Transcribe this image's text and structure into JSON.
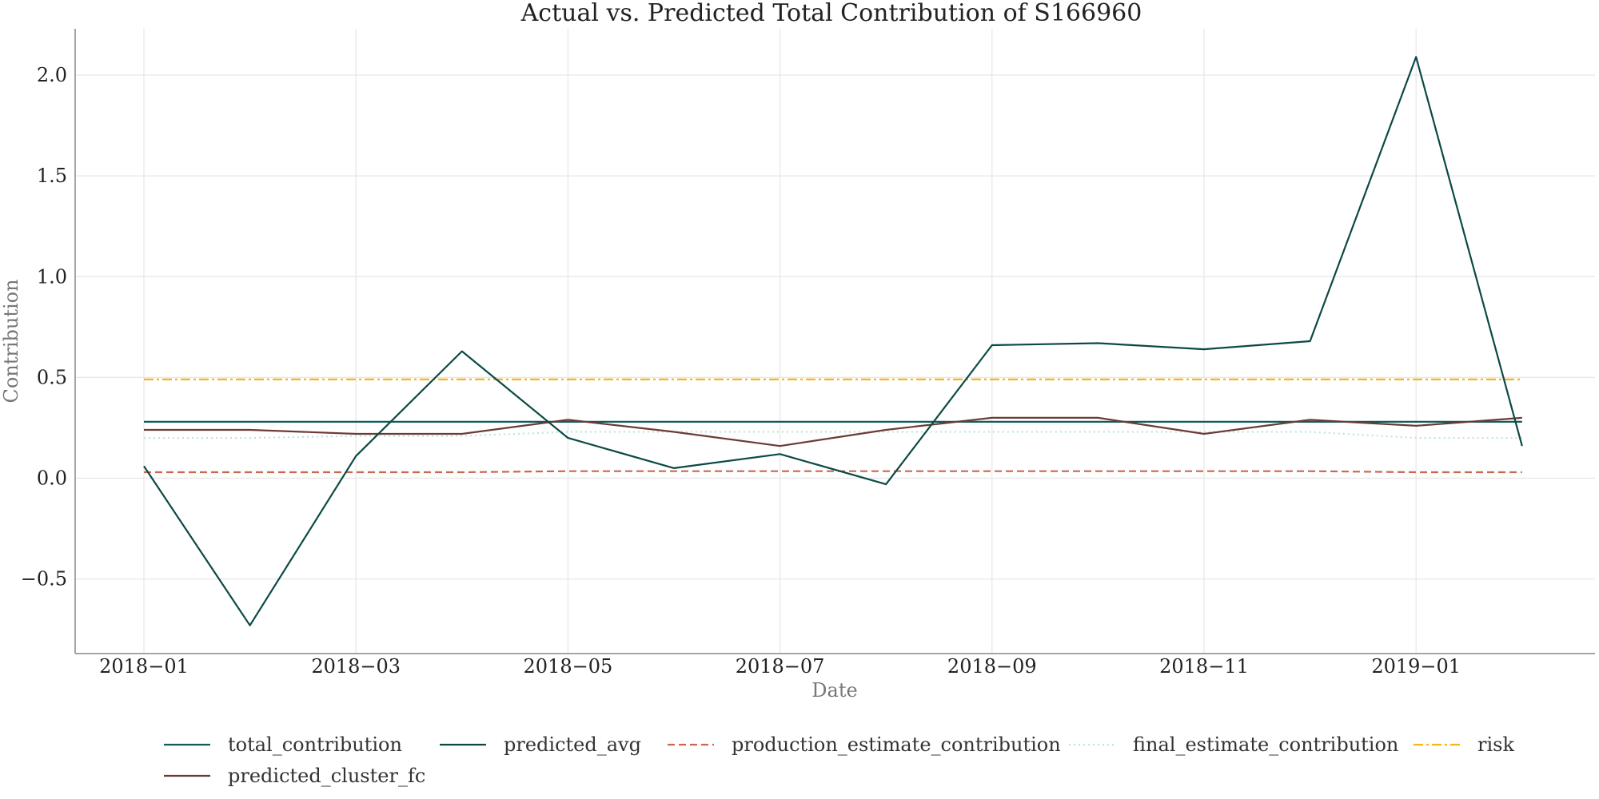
{
  "chart_data": {
    "type": "line",
    "title": "Actual vs. Predicted Total Contribution of S166960",
    "xlabel": "Date",
    "ylabel": "Contribution",
    "x": [
      "2018-01",
      "2018-02",
      "2018-03",
      "2018-04",
      "2018-05",
      "2018-06",
      "2018-07",
      "2018-08",
      "2018-09",
      "2018-10",
      "2018-11",
      "2018-12",
      "2019-01",
      "2019-02"
    ],
    "x_ticks": [
      "2018-01",
      "2018-03",
      "2018-05",
      "2018-07",
      "2018-09",
      "2018-11",
      "2019-01"
    ],
    "x_tick_labels": [
      "2018−01",
      "2018−03",
      "2018−05",
      "2018−07",
      "2018−09",
      "2018−11",
      "2019−01"
    ],
    "y_ticks": [
      -0.5,
      0.0,
      0.5,
      1.0,
      1.5,
      2.0
    ],
    "y_tick_labels": [
      "−0.5",
      "0.0",
      "0.5",
      "1.0",
      "1.5",
      "2.0"
    ],
    "ylim": [
      -0.87,
      2.23
    ],
    "grid": true,
    "legend_position": "bottom",
    "series": [
      {
        "name": "total_contribution",
        "color": "#0e5c5c",
        "dash": "solid",
        "values": [
          0.28,
          0.28,
          0.28,
          0.28,
          0.28,
          0.28,
          0.28,
          0.28,
          0.28,
          0.28,
          0.28,
          0.28,
          0.28,
          0.28
        ]
      },
      {
        "name": "predicted_avg",
        "color": "#0b4a44",
        "dash": "solid",
        "values": [
          0.06,
          -0.73,
          0.11,
          0.63,
          0.2,
          0.05,
          0.12,
          -0.03,
          0.66,
          0.67,
          0.64,
          0.68,
          2.09,
          0.16
        ]
      },
      {
        "name": "production_estimate_contribution",
        "color": "#c9684e",
        "dash": "dashed",
        "values": [
          0.03,
          0.03,
          0.03,
          0.03,
          0.035,
          0.035,
          0.035,
          0.035,
          0.035,
          0.035,
          0.035,
          0.035,
          0.03,
          0.03
        ]
      },
      {
        "name": "final_estimate_contribution",
        "color": "#bfe3df",
        "dash": "dotted",
        "values": [
          0.2,
          0.2,
          0.21,
          0.21,
          0.23,
          0.23,
          0.23,
          0.23,
          0.23,
          0.23,
          0.23,
          0.23,
          0.2,
          0.2
        ]
      },
      {
        "name": "risk",
        "color": "#f5b418",
        "dash": "dashdot",
        "values": [
          0.49,
          0.49,
          0.49,
          0.49,
          0.49,
          0.49,
          0.49,
          0.49,
          0.49,
          0.49,
          0.49,
          0.49,
          0.49,
          0.49
        ]
      },
      {
        "name": "predicted_cluster_fc",
        "color": "#6b3b36",
        "dash": "solid",
        "values": [
          0.24,
          0.24,
          0.22,
          0.22,
          0.29,
          0.23,
          0.16,
          0.24,
          0.3,
          0.3,
          0.22,
          0.29,
          0.26,
          0.3
        ]
      }
    ]
  }
}
